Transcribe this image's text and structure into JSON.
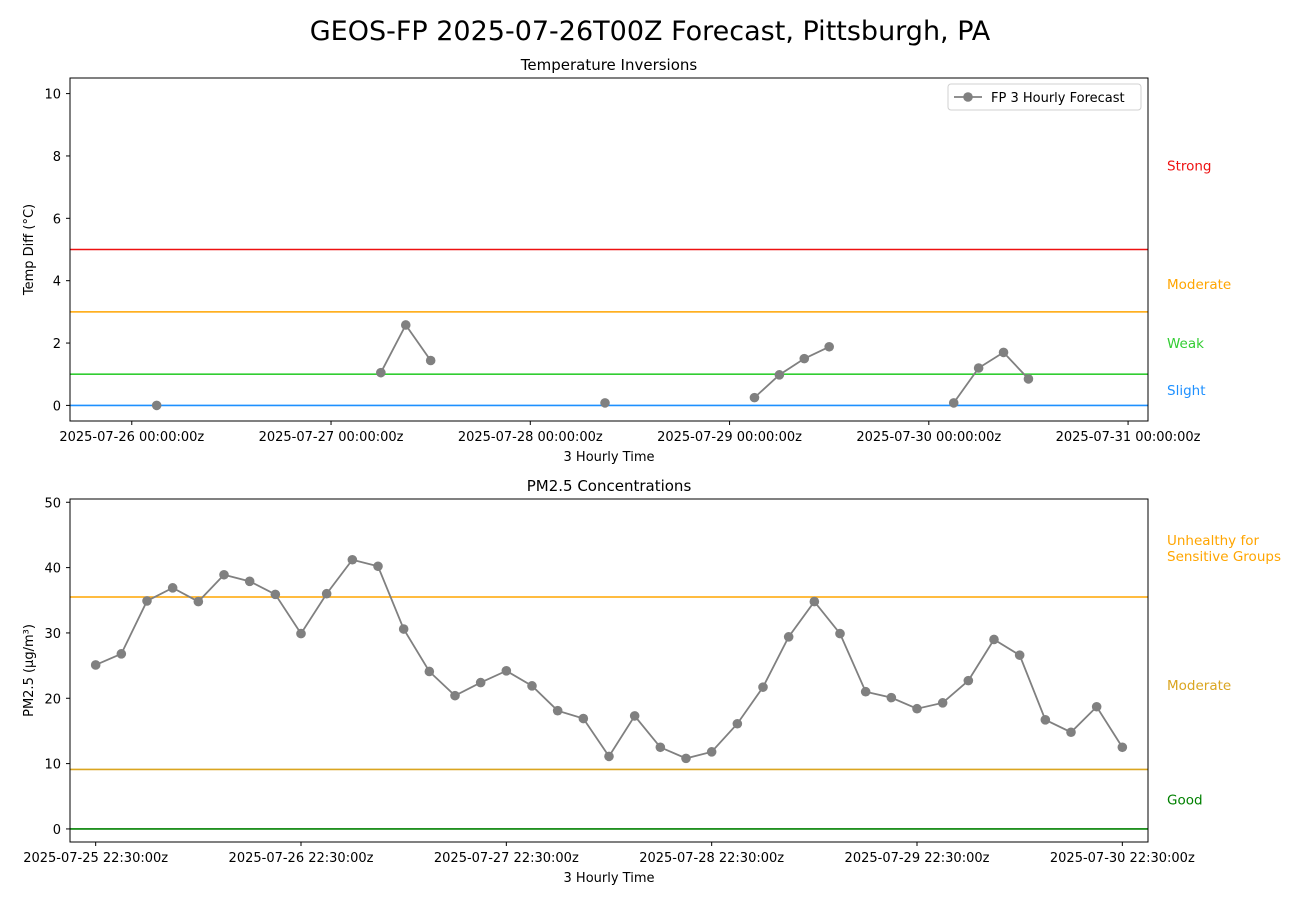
{
  "suptitle": "GEOS-FP 2025-07-26T00Z Forecast, Pittsburgh, PA",
  "chart_data": [
    {
      "type": "line",
      "title": "Temperature Inversions",
      "xlabel": "3 Hourly Time",
      "ylabel": "Temp Diff (°C)",
      "xlim": [
        -0.31,
        5.1
      ],
      "ylim": [
        -0.5,
        10.5
      ],
      "yticks": [
        0,
        2,
        4,
        6,
        8,
        10
      ],
      "xticks": [
        {
          "pos": 0,
          "label": "2025-07-26 00:00:00z"
        },
        {
          "pos": 1,
          "label": "2025-07-27 00:00:00z"
        },
        {
          "pos": 2,
          "label": "2025-07-28 00:00:00z"
        },
        {
          "pos": 3,
          "label": "2025-07-29 00:00:00z"
        },
        {
          "pos": 4,
          "label": "2025-07-30 00:00:00z"
        },
        {
          "pos": 5,
          "label": "2025-07-31 00:00:00z"
        }
      ],
      "legend": {
        "label": "FP 3 Hourly Forecast",
        "position": "top-right"
      },
      "series": [
        {
          "name": "FP 3 Hourly Forecast",
          "color": "#808080",
          "segments": [
            [
              [
                0.125,
                0.0
              ]
            ],
            [
              [
                1.25,
                1.05
              ],
              [
                1.375,
                2.58
              ],
              [
                1.5,
                1.44
              ]
            ],
            [
              [
                2.375,
                0.08
              ]
            ],
            [
              [
                3.125,
                0.25
              ],
              [
                3.25,
                0.98
              ],
              [
                3.375,
                1.5
              ],
              [
                3.5,
                1.88
              ]
            ],
            [
              [
                4.125,
                0.08
              ],
              [
                4.25,
                1.2
              ],
              [
                4.375,
                1.7
              ],
              [
                4.5,
                0.85
              ]
            ]
          ]
        }
      ],
      "thresholds": [
        {
          "value": 5,
          "color": "#ee1111",
          "label": "Strong",
          "label_y": 7.7
        },
        {
          "value": 3,
          "color": "#ffa500",
          "label": "Moderate",
          "label_y": 3.9
        },
        {
          "value": 1,
          "color": "#32cd32",
          "label": "Weak",
          "label_y": 2.0
        },
        {
          "value": 0,
          "color": "#1e90ff",
          "label": "Slight",
          "label_y": 0.5
        }
      ],
      "grid": false
    },
    {
      "type": "line",
      "title": "PM2.5 Concentrations",
      "xlabel": "3 Hourly Time",
      "ylabel": "PM2.5 (μg/m³)",
      "xlim": [
        -0.125,
        5.125
      ],
      "ylim": [
        -2,
        50.5
      ],
      "yticks": [
        0,
        10,
        20,
        30,
        40,
        50
      ],
      "xticks": [
        {
          "pos": 0,
          "label": "2025-07-25 22:30:00z"
        },
        {
          "pos": 1,
          "label": "2025-07-26 22:30:00z"
        },
        {
          "pos": 2,
          "label": "2025-07-27 22:30:00z"
        },
        {
          "pos": 3,
          "label": "2025-07-28 22:30:00z"
        },
        {
          "pos": 4,
          "label": "2025-07-29 22:30:00z"
        },
        {
          "pos": 5,
          "label": "2025-07-30 22:30:00z"
        }
      ],
      "series": [
        {
          "name": "FP 3 Hourly Forecast",
          "color": "#808080",
          "x_start": 0,
          "x_step": 0.125,
          "values": [
            25.1,
            26.8,
            34.9,
            36.9,
            34.8,
            38.9,
            37.9,
            35.9,
            29.9,
            36.0,
            41.2,
            40.2,
            30.6,
            24.1,
            20.4,
            22.4,
            24.2,
            21.9,
            18.1,
            16.9,
            11.1,
            17.3,
            12.5,
            10.8,
            11.8,
            16.1,
            21.7,
            29.4,
            34.8,
            29.9,
            21.0,
            20.1,
            18.4,
            19.3,
            22.7,
            29.0,
            26.6,
            16.7,
            14.8,
            18.7,
            12.5
          ]
        }
      ],
      "thresholds": [
        {
          "value": 35.5,
          "color": "#ffa500",
          "label": "Unhealthy for\nSensitive Groups",
          "label_y": 43
        },
        {
          "value": 9.1,
          "color": "#daa520",
          "label": "Moderate",
          "label_y": 22
        },
        {
          "value": 0,
          "color": "#008000",
          "label": "Good",
          "label_y": 4.5
        }
      ],
      "grid": false
    }
  ]
}
